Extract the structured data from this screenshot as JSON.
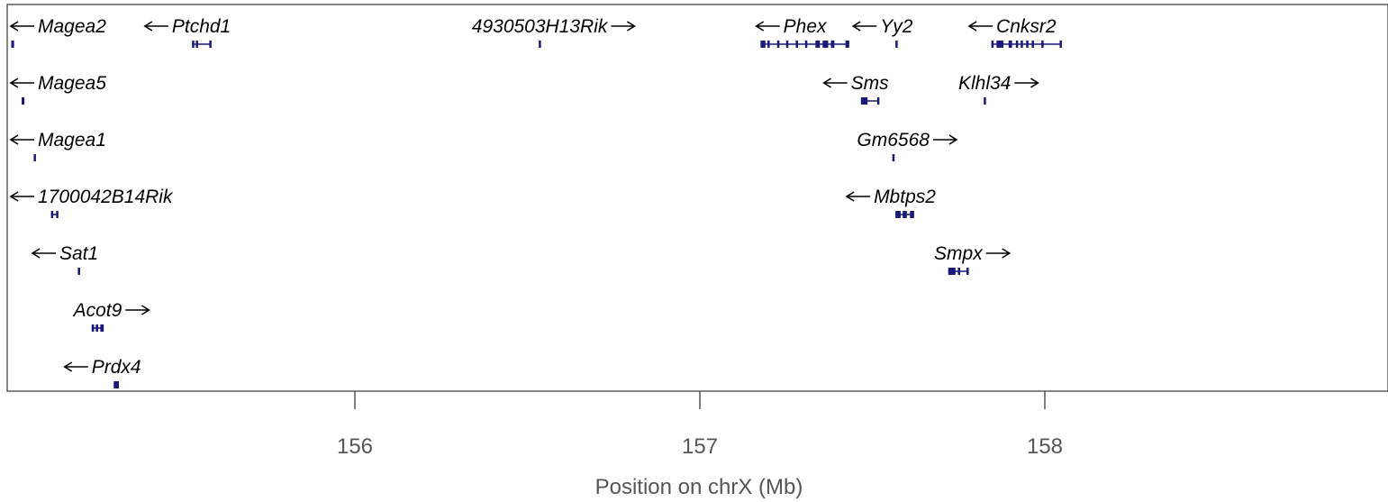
{
  "chart_data": {
    "type": "gene-track",
    "xlabel": "Position on chrX (Mb)",
    "xlim": [
      154.98,
      158.99
    ],
    "x_ticks": [
      156,
      157,
      158
    ],
    "x_tick_labels": [
      "156",
      "157",
      "158"
    ],
    "colors": {
      "gene": "#1a1a7a",
      "text": "#000000",
      "axis": "#555555"
    },
    "genes": [
      {
        "name": "Magea2",
        "strand": "-",
        "row": 0,
        "start": 155.004,
        "end": 155.012,
        "exons": [
          [
            155.004,
            155.012
          ]
        ]
      },
      {
        "name": "Ptchd1",
        "strand": "-",
        "row": 0,
        "start": 155.528,
        "end": 155.582,
        "exons": [
          [
            155.528,
            155.534
          ],
          [
            155.539,
            155.544
          ],
          [
            155.578,
            155.582
          ]
        ]
      },
      {
        "name": "4930503H13Rik",
        "strand": "+",
        "row": 0,
        "start": 156.533,
        "end": 156.538,
        "exons": [
          [
            156.533,
            156.538
          ]
        ]
      },
      {
        "name": "Phex",
        "strand": "-",
        "row": 0,
        "start": 157.176,
        "end": 157.433,
        "exons": [
          [
            157.176,
            157.19
          ],
          [
            157.196,
            157.2
          ],
          [
            157.224,
            157.228
          ],
          [
            157.25,
            157.254
          ],
          [
            157.278,
            157.282
          ],
          [
            157.305,
            157.309
          ],
          [
            157.335,
            157.348
          ],
          [
            157.356,
            157.372
          ],
          [
            157.38,
            157.39
          ],
          [
            157.422,
            157.433
          ]
        ]
      },
      {
        "name": "Yy2",
        "strand": "-",
        "row": 0,
        "start": 157.567,
        "end": 157.573,
        "exons": [
          [
            157.567,
            157.573
          ]
        ]
      },
      {
        "name": "Cnksr2",
        "strand": "-",
        "row": 0,
        "start": 157.845,
        "end": 158.047,
        "exons": [
          [
            157.845,
            157.85
          ],
          [
            157.86,
            157.88
          ],
          [
            157.895,
            157.905
          ],
          [
            157.916,
            157.921
          ],
          [
            157.93,
            157.935
          ],
          [
            157.946,
            157.951
          ],
          [
            157.962,
            157.967
          ],
          [
            157.99,
            157.996
          ],
          [
            158.043,
            158.047
          ]
        ]
      },
      {
        "name": "Magea5",
        "strand": "-",
        "row": 1,
        "start": 155.034,
        "end": 155.042,
        "exons": [
          [
            155.034,
            155.042
          ]
        ]
      },
      {
        "name": "Sms",
        "strand": "-",
        "row": 1,
        "start": 157.467,
        "end": 157.518,
        "exons": [
          [
            157.467,
            157.486
          ],
          [
            157.514,
            157.518
          ]
        ]
      },
      {
        "name": "Klhl34",
        "strand": "+",
        "row": 1,
        "start": 157.823,
        "end": 157.828,
        "exons": [
          [
            157.823,
            157.828
          ]
        ]
      },
      {
        "name": "Magea1",
        "strand": "-",
        "row": 2,
        "start": 155.069,
        "end": 155.074,
        "exons": [
          [
            155.069,
            155.074
          ]
        ]
      },
      {
        "name": "Gm6568",
        "strand": "+",
        "row": 2,
        "start": 157.558,
        "end": 157.563,
        "exons": [
          [
            157.558,
            157.563
          ]
        ]
      },
      {
        "name": "1700042B14Rik",
        "strand": "-",
        "row": 3,
        "start": 155.119,
        "end": 155.139,
        "exons": [
          [
            155.119,
            155.123
          ],
          [
            155.134,
            155.139
          ]
        ]
      },
      {
        "name": "Mbtps2",
        "strand": "-",
        "row": 3,
        "start": 157.567,
        "end": 157.621,
        "exons": [
          [
            157.567,
            157.582
          ],
          [
            157.588,
            157.6
          ],
          [
            157.609,
            157.621
          ]
        ]
      },
      {
        "name": "Sat1",
        "strand": "-",
        "row": 4,
        "start": 155.197,
        "end": 155.203,
        "exons": [
          [
            155.197,
            155.203
          ]
        ]
      },
      {
        "name": "Smpx",
        "strand": "+",
        "row": 4,
        "start": 157.72,
        "end": 157.778,
        "exons": [
          [
            157.72,
            157.741
          ],
          [
            157.748,
            157.753
          ],
          [
            157.773,
            157.778
          ]
        ]
      },
      {
        "name": "Acot9",
        "strand": "+",
        "row": 5,
        "start": 155.237,
        "end": 155.272,
        "exons": [
          [
            155.237,
            155.244
          ],
          [
            155.249,
            155.256
          ],
          [
            155.262,
            155.272
          ]
        ]
      },
      {
        "name": "Prdx4",
        "strand": "-",
        "row": 6,
        "start": 155.301,
        "end": 155.316,
        "exons": [
          [
            155.301,
            155.316
          ]
        ]
      }
    ]
  }
}
